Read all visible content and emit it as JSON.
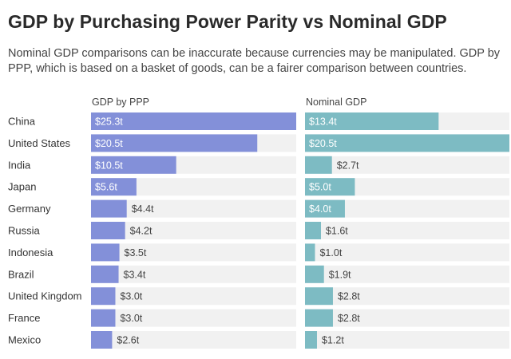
{
  "title": "GDP by Purchasing Power Parity vs Nominal GDP",
  "subtitle": "Nominal GDP comparisons can be inaccurate because currencies may be manipulated. GDP by PPP, which is based on a basket of goods, can be a fairer comparison between countries.",
  "colors": {
    "ppp": "#8390d9",
    "nominal": "#7dbbc3",
    "track": "#f1f1f1",
    "label_inside": "#ffffff",
    "label_outside": "#444444"
  },
  "chart_data": {
    "type": "bar",
    "orientation": "horizontal",
    "title": "GDP by Purchasing Power Parity vs Nominal GDP",
    "categories": [
      "China",
      "United States",
      "India",
      "Japan",
      "Germany",
      "Russia",
      "Indonesia",
      "Brazil",
      "United Kingdom",
      "France",
      "Mexico"
    ],
    "series": [
      {
        "name": "GDP by PPP",
        "values": [
          25.3,
          20.5,
          10.5,
          5.6,
          4.4,
          4.2,
          3.5,
          3.4,
          3.0,
          3.0,
          2.6
        ],
        "labels": [
          "$25.3t",
          "$20.5t",
          "$10.5t",
          "$5.6t",
          "$4.4t",
          "$4.2t",
          "$3.5t",
          "$3.4t",
          "$3.0t",
          "$3.0t",
          "$2.6t"
        ],
        "xlim": [
          0,
          25.3
        ]
      },
      {
        "name": "Nominal GDP",
        "values": [
          13.4,
          20.5,
          2.7,
          5.0,
          4.0,
          1.6,
          1.0,
          1.9,
          2.8,
          2.8,
          1.2
        ],
        "labels": [
          "$13.4t",
          "$20.5t",
          "$2.7t",
          "$5.0t",
          "$4.0t",
          "$1.6t",
          "$1.0t",
          "$1.9t",
          "$2.8t",
          "$2.8t",
          "$1.2t"
        ],
        "xlim": [
          0,
          20.5
        ]
      }
    ],
    "unit": "trillion USD",
    "grid": false,
    "legend": "none"
  }
}
